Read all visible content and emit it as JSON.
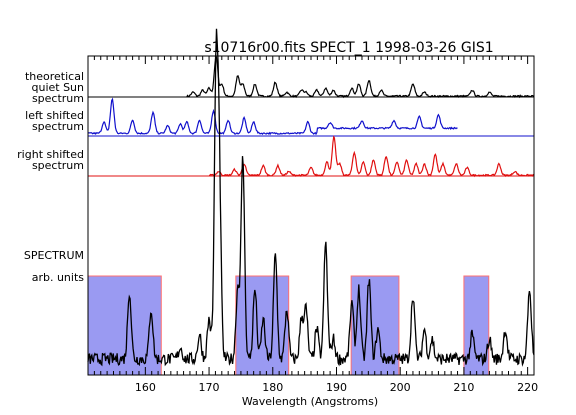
{
  "chart_data": {
    "type": "line",
    "title": "s10716r00.fits SPECT_1 1998-03-26 GIS1",
    "xlabel": "Wavelength (Angstroms)",
    "xlim": [
      151,
      221
    ],
    "xticks": [
      160,
      170,
      180,
      190,
      200,
      210,
      220
    ],
    "panels": [
      {
        "name": "theoretical quiet Sun spectrum",
        "label_lines": [
          "theoretical",
          "quiet Sun",
          "spectrum"
        ],
        "color": "#000000",
        "lines": [
          [
            167.5,
            0.1
          ],
          [
            169.0,
            0.15
          ],
          [
            170.0,
            0.2
          ],
          [
            171.1,
            1.0
          ],
          [
            172.0,
            0.3
          ],
          [
            174.5,
            0.5
          ],
          [
            175.3,
            0.3
          ],
          [
            177.2,
            0.3
          ],
          [
            180.4,
            0.35
          ],
          [
            182.2,
            0.1
          ],
          [
            184.5,
            0.15
          ],
          [
            185.2,
            0.1
          ],
          [
            186.9,
            0.15
          ],
          [
            188.3,
            0.2
          ],
          [
            189.5,
            0.15
          ],
          [
            192.4,
            0.2
          ],
          [
            193.5,
            0.3
          ],
          [
            195.1,
            0.4
          ],
          [
            197.0,
            0.15
          ],
          [
            202.0,
            0.3
          ],
          [
            203.8,
            0.1
          ],
          [
            211.3,
            0.15
          ],
          [
            214.0,
            0.1
          ]
        ],
        "start": 166.5,
        "end": 221
      },
      {
        "name": "left shifted spectrum",
        "label_lines": [
          "left shifted",
          "spectrum"
        ],
        "color": "#1010cc",
        "lines": [
          [
            153.5,
            0.3
          ],
          [
            154.8,
            0.9
          ],
          [
            158.0,
            0.35
          ],
          [
            161.2,
            0.55
          ],
          [
            163.5,
            0.2
          ],
          [
            165.5,
            0.25
          ],
          [
            166.5,
            0.3
          ],
          [
            168.5,
            0.35
          ],
          [
            170.7,
            0.6
          ],
          [
            173.0,
            0.35
          ],
          [
            175.5,
            0.4
          ],
          [
            177.0,
            0.3
          ],
          [
            185.5,
            0.3
          ],
          [
            189.0,
            0.15
          ],
          [
            194.0,
            0.2
          ],
          [
            199.0,
            0.2
          ],
          [
            203.0,
            0.3
          ],
          [
            206.0,
            0.35
          ]
        ],
        "start": 151,
        "end": 209,
        "continuum": 0.05,
        "continuum_from": 187,
        "continuum_level": 0.3
      },
      {
        "name": "right shifted spectrum",
        "label_lines": [
          "right shifted",
          "spectrum"
        ],
        "color": "#e01010",
        "lines": [
          [
            171.5,
            0.1
          ],
          [
            174.0,
            0.15
          ],
          [
            175.5,
            0.3
          ],
          [
            178.5,
            0.25
          ],
          [
            180.8,
            0.25
          ],
          [
            182.5,
            0.1
          ],
          [
            186.0,
            0.2
          ],
          [
            188.5,
            0.35
          ],
          [
            189.6,
            1.0
          ],
          [
            190.5,
            0.3
          ],
          [
            192.8,
            0.6
          ],
          [
            194.2,
            0.35
          ],
          [
            195.8,
            0.4
          ],
          [
            197.8,
            0.5
          ],
          [
            199.5,
            0.35
          ],
          [
            201.0,
            0.4
          ],
          [
            202.5,
            0.3
          ],
          [
            203.8,
            0.3
          ],
          [
            205.5,
            0.55
          ],
          [
            206.7,
            0.3
          ],
          [
            208.8,
            0.3
          ],
          [
            210.5,
            0.2
          ],
          [
            215.5,
            0.3
          ],
          [
            218.0,
            0.1
          ]
        ],
        "start": 170,
        "end": 221
      }
    ],
    "spectrum": {
      "label_lines": [
        "SPECTRUM",
        "arb. units"
      ],
      "color": "#000000",
      "lines": [
        [
          157.5,
          0.34
        ],
        [
          160.9,
          0.25
        ],
        [
          165.5,
          0.06
        ],
        [
          168.5,
          0.12
        ],
        [
          170.0,
          0.2
        ],
        [
          171.1,
          1.4
        ],
        [
          171.6,
          0.9
        ],
        [
          174.5,
          0.35
        ],
        [
          175.3,
          1.0
        ],
        [
          177.2,
          0.35
        ],
        [
          178.5,
          0.2
        ],
        [
          180.4,
          0.52
        ],
        [
          182.2,
          0.25
        ],
        [
          184.5,
          0.2
        ],
        [
          185.2,
          0.25
        ],
        [
          186.9,
          0.15
        ],
        [
          188.3,
          0.58
        ],
        [
          189.5,
          0.1
        ],
        [
          192.4,
          0.28
        ],
        [
          193.5,
          0.35
        ],
        [
          195.1,
          0.4
        ],
        [
          196.5,
          0.15
        ],
        [
          202.0,
          0.32
        ],
        [
          203.8,
          0.15
        ],
        [
          205.0,
          0.1
        ],
        [
          211.3,
          0.12
        ],
        [
          214.0,
          0.1
        ],
        [
          216.5,
          0.15
        ],
        [
          220.3,
          0.35
        ]
      ],
      "baseline": 0.02
    },
    "shaded_bands": [
      [
        150.8,
        162.5
      ],
      [
        174.2,
        182.5
      ],
      [
        192.3,
        199.8
      ],
      [
        210.0,
        213.9
      ]
    ],
    "band_color": "#9a9af2",
    "band_edge_color": "#ff7070"
  }
}
